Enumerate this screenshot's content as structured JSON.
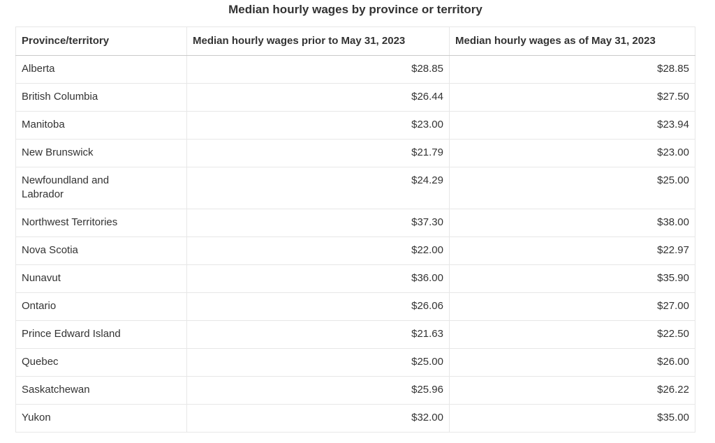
{
  "chart_data": {
    "type": "table",
    "title": "Median hourly wages by province or territory",
    "columns": [
      "Province/territory",
      "Median hourly wages prior to May 31, 2023",
      "Median hourly wages as of May 31, 2023"
    ],
    "rows": [
      [
        "Alberta",
        "$28.85",
        "$28.85"
      ],
      [
        "British Columbia",
        "$26.44",
        "$27.50"
      ],
      [
        "Manitoba",
        "$23.00",
        "$23.94"
      ],
      [
        "New Brunswick",
        "$21.79",
        "$23.00"
      ],
      [
        "Newfoundland and Labrador",
        "$24.29",
        "$25.00"
      ],
      [
        "Northwest Territories",
        "$37.30",
        "$38.00"
      ],
      [
        "Nova Scotia",
        "$22.00",
        "$22.97"
      ],
      [
        "Nunavut",
        "$36.00",
        "$35.90"
      ],
      [
        "Ontario",
        "$26.06",
        "$27.00"
      ],
      [
        "Prince Edward Island",
        "$21.63",
        "$22.50"
      ],
      [
        "Quebec",
        "$25.00",
        "$26.00"
      ],
      [
        "Saskatchewan",
        "$25.96",
        "$26.22"
      ],
      [
        "Yukon",
        "$32.00",
        "$35.00"
      ]
    ],
    "layout_hints": {
      "value_alignment": "right",
      "header_vertical_alignment": "bottom",
      "grid": true
    }
  },
  "colors": {
    "text": "#333333",
    "row_border": "#e7e7e7",
    "header_bottom_border": "#c9c9c9",
    "next_section_fill": "#f4f4f4"
  }
}
